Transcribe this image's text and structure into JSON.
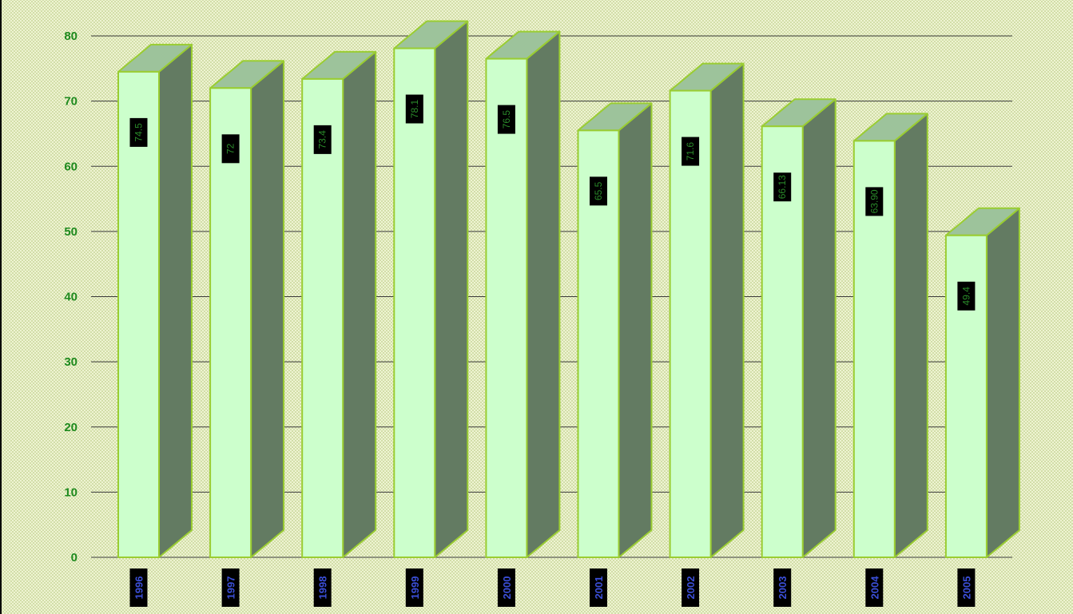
{
  "chart_data": {
    "type": "bar",
    "categories": [
      "1996",
      "1997",
      "1998",
      "1999",
      "2000",
      "2001",
      "2002",
      "2003",
      "2004",
      "2005"
    ],
    "values": [
      74.5,
      72,
      73.4,
      78.1,
      76.5,
      65.5,
      71.6,
      66.13,
      63.9,
      49.4
    ],
    "value_labels": [
      "74.5",
      "72",
      "73.4",
      "78.1",
      "76.5",
      "65.5",
      "71.6",
      "66.13",
      "63.90",
      "49.4"
    ],
    "yticks": [
      "0",
      "10",
      "20",
      "30",
      "40",
      "50",
      "60",
      "70",
      "80"
    ],
    "ylim": [
      0,
      80
    ],
    "grid": true,
    "legend": "none",
    "colors": {
      "bar_front": "#ccffcc",
      "bar_side": "#637b62",
      "bar_top": "#9dc39b",
      "bar_outline": "#9acd32",
      "label_box": "#000000",
      "axis_tick_text": "#1e8a1e",
      "category_text": "#3b4fd8",
      "gridline": "#3a3a3a"
    }
  }
}
